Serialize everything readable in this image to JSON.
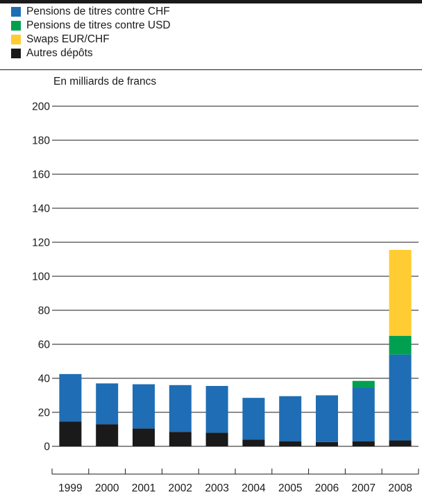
{
  "chart_data": {
    "type": "bar",
    "stacked": true,
    "title": "",
    "ylabel": "En milliards de francs",
    "xlabel": "",
    "ylim": [
      0,
      200
    ],
    "yticks": [
      0,
      20,
      40,
      60,
      80,
      100,
      120,
      140,
      160,
      180,
      200
    ],
    "grid": true,
    "legend_position": "top-left",
    "categories": [
      "1999",
      "2000",
      "2001",
      "2002",
      "2003",
      "2004",
      "2005",
      "2006",
      "2007",
      "2008"
    ],
    "series": [
      {
        "name": "Autres dépôts",
        "color": "#1a1a1a",
        "values": [
          14.5,
          13,
          10.5,
          8.5,
          8,
          4,
          3,
          2.5,
          3,
          3.5
        ]
      },
      {
        "name": "Pensions de titres contre CHF",
        "color": "#1f6db5",
        "values": [
          28,
          24,
          26,
          27.5,
          27.5,
          24.5,
          26.5,
          27.5,
          31.5,
          50.5
        ]
      },
      {
        "name": "Pensions de titres contre USD",
        "color": "#00a050",
        "values": [
          0,
          0,
          0,
          0,
          0,
          0,
          0,
          0,
          4,
          11
        ]
      },
      {
        "name": "Swaps EUR/CHF",
        "color": "#ffcc33",
        "values": [
          0,
          0,
          0,
          0,
          0,
          0,
          0,
          0,
          0,
          50.5
        ]
      }
    ],
    "legend_order": [
      "Pensions de titres contre CHF",
      "Pensions de titres contre USD",
      "Swaps EUR/CHF",
      "Autres dépôts"
    ]
  }
}
